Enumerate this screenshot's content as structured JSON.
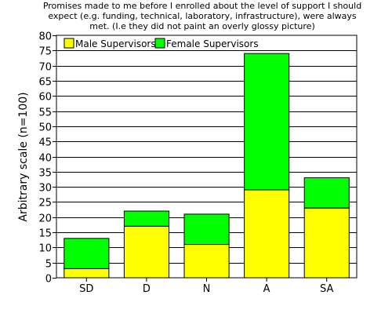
{
  "chart_data": {
    "type": "bar",
    "stacked": true,
    "title_lines": [
      "Promises made to me before I enrolled about the level of support I should",
      "expect (e.g. funding, technical, laboratory, infrastructure), were always",
      "met. (I.e they did not paint an overly glossy picture)"
    ],
    "xlabel": "",
    "ylabel": "Arbitrary scale (n=100)",
    "ylim": [
      0,
      80
    ],
    "yticks": [
      0,
      5,
      10,
      15,
      20,
      25,
      30,
      35,
      40,
      45,
      50,
      55,
      60,
      65,
      70,
      75,
      80
    ],
    "grid": true,
    "legend_position": "top-left",
    "categories": [
      "SD",
      "D",
      "N",
      "A",
      "SA"
    ],
    "series": [
      {
        "name": "Male Supervisors",
        "color": "#ffff00",
        "values": [
          3,
          17,
          11,
          29,
          23
        ]
      },
      {
        "name": "Female Supervisors",
        "color": "#00ff00",
        "values": [
          10,
          5,
          10,
          45,
          10
        ]
      }
    ]
  }
}
